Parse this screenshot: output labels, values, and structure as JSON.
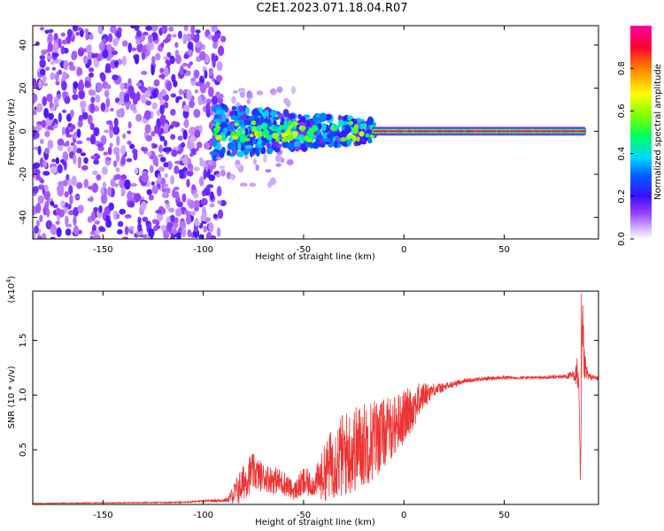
{
  "figure": {
    "title": "C2E1.2023.071.18.04.R07"
  },
  "chart_data": [
    {
      "type": "heatmap",
      "title": "C2E1.2023.071.18.04.R07",
      "xlabel": "Height of straight line (km)",
      "ylabel": "Frequency (Hz)",
      "xlim": [
        -185,
        97
      ],
      "ylim": [
        -50,
        49
      ],
      "xticks": [
        -150,
        -100,
        -50,
        0,
        50
      ],
      "yticks": [
        -40,
        -20,
        0,
        20,
        40
      ],
      "colorbar": {
        "label": "Normalized spectral amplitude",
        "range": [
          0.0,
          1.0
        ],
        "ticks": [
          0.0,
          0.2,
          0.4,
          0.6,
          0.8
        ],
        "colors": [
          "#ffffff",
          "#c6a0ff",
          "#7a00ff",
          "#1c2cff",
          "#00c8ff",
          "#00ff30",
          "#ffff00",
          "#ff8000",
          "#ff0040",
          "#ff00a0"
        ]
      },
      "regions": [
        {
          "x_range": [
            -185,
            -90
          ],
          "freq_range": [
            -50,
            49
          ],
          "description": "broadband low-amplitude scatter",
          "amplitude": 0.1
        },
        {
          "x_range": [
            -95,
            -15
          ],
          "freq_range": [
            -12,
            10
          ],
          "description": "moderate energy band",
          "amplitude": 0.4
        },
        {
          "x_range": [
            -15,
            90
          ],
          "freq_range": [
            -1.5,
            1.5
          ],
          "description": "narrow tone near 0 Hz",
          "amplitude": 0.85
        }
      ]
    },
    {
      "type": "line",
      "xlabel": "Height of straight line (km)",
      "ylabel": "SNR (10 * v/v)",
      "ylabel_multiplier": "(x10",
      "ylabel_exponent": "4",
      "ylabel_multiplier_close": ")",
      "xlim": [
        -185,
        97
      ],
      "ylim": [
        0.0,
        1.95
      ],
      "xticks": [
        -150,
        -100,
        -50,
        0,
        50
      ],
      "yticks": [
        0.5,
        1.0,
        1.5
      ],
      "series_color": "#ee3333",
      "envelope": {
        "x": [
          -185,
          -110,
          -100,
          -88,
          -82,
          -76,
          -70,
          -60,
          -55,
          -50,
          -45,
          -40,
          -35,
          -30,
          -25,
          -20,
          -15,
          -10,
          -5,
          0,
          5,
          10,
          15,
          20,
          25,
          30,
          40,
          50,
          60,
          70,
          80,
          85,
          87,
          88,
          89,
          90,
          92,
          97
        ],
        "y": [
          0.01,
          0.02,
          0.03,
          0.04,
          0.15,
          0.3,
          0.25,
          0.2,
          0.12,
          0.2,
          0.18,
          0.28,
          0.4,
          0.45,
          0.5,
          0.55,
          0.6,
          0.65,
          0.72,
          0.8,
          0.9,
          1.0,
          1.05,
          1.07,
          1.1,
          1.13,
          1.15,
          1.16,
          1.16,
          1.16,
          1.17,
          1.18,
          1.2,
          0.2,
          1.6,
          1.25,
          1.17,
          1.15
        ],
        "amp": [
          0.003,
          0.005,
          0.01,
          0.02,
          0.16,
          0.18,
          0.13,
          0.12,
          0.08,
          0.15,
          0.1,
          0.25,
          0.35,
          0.4,
          0.4,
          0.4,
          0.38,
          0.32,
          0.28,
          0.25,
          0.2,
          0.12,
          0.06,
          0.04,
          0.03,
          0.02,
          0.02,
          0.015,
          0.015,
          0.015,
          0.02,
          0.05,
          0.2,
          0.1,
          0.35,
          0.15,
          0.03,
          0.02
        ]
      },
      "spike_peak": {
        "x": 88.5,
        "y": 1.93
      }
    }
  ]
}
